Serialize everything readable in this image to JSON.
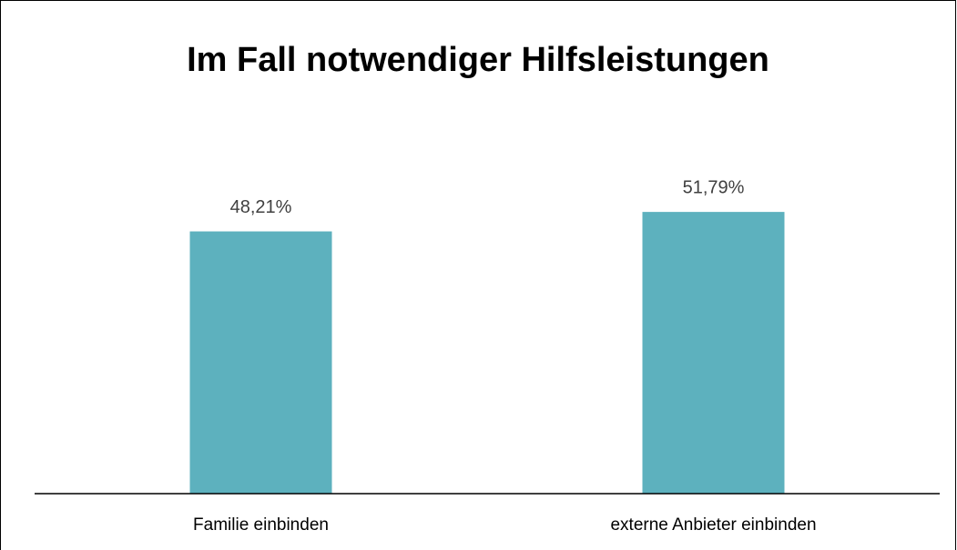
{
  "chart_data": {
    "type": "bar",
    "title": "Im Fall notwendiger Hilfsleistungen",
    "categories": [
      "Familie einbinden",
      "externe Anbieter einbinden"
    ],
    "values": [
      48.21,
      51.79
    ],
    "value_labels": [
      "48,21%",
      "51,79%"
    ],
    "color": "#5db1be",
    "ylim": [
      0,
      60
    ]
  }
}
